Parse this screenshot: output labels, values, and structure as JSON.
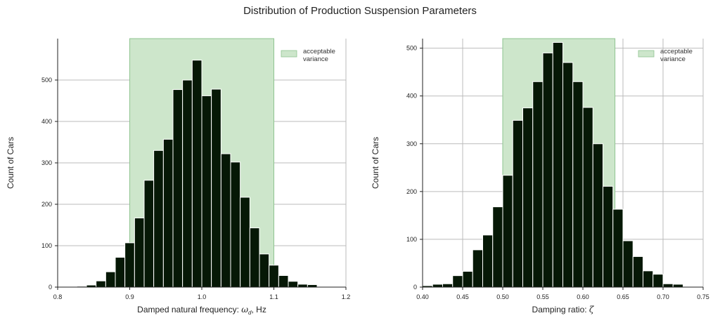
{
  "figure": {
    "title": "Distribution of Production Suspension Parameters"
  },
  "colors": {
    "bar": "#061806",
    "bar_edge": "#ffffff",
    "band": "#cde6cb",
    "band_edge": "#8fc490",
    "grid": "#bbbbbb"
  },
  "chart_data": [
    {
      "type": "histogram",
      "title": "",
      "xlabel": "Damped natural frequency: ",
      "xlabel_math": "ω",
      "xlabel_sub": "d",
      "xlabel_suffix": ", Hz",
      "ylabel": "Count of Cars",
      "xlim": [
        0.8,
        1.2
      ],
      "ylim": [
        0,
        600
      ],
      "xticks": [
        "0.8",
        "0.9",
        "1.0",
        "1.1",
        "1.2"
      ],
      "yticks": [
        "0",
        "100",
        "200",
        "300",
        "400",
        "500"
      ],
      "xtick_values": [
        0.8,
        0.9,
        1.0,
        1.1,
        1.2
      ],
      "ytick_values": [
        0,
        100,
        200,
        300,
        400,
        500
      ],
      "bin_edges": [
        0.8,
        0.8133,
        0.8267,
        0.84,
        0.8533,
        0.8667,
        0.88,
        0.8933,
        0.9067,
        0.92,
        0.9333,
        0.9467,
        0.96,
        0.9733,
        0.9867,
        1.0,
        1.0133,
        1.0267,
        1.04,
        1.0533,
        1.0667,
        1.08,
        1.0933,
        1.1067,
        1.12,
        1.1333,
        1.1467,
        1.16
      ],
      "counts": [
        1,
        1,
        2,
        5,
        15,
        37,
        72,
        107,
        167,
        258,
        330,
        357,
        477,
        500,
        548,
        462,
        478,
        322,
        302,
        217,
        143,
        80,
        53,
        28,
        14,
        7,
        6
      ],
      "shaded_region": {
        "start": 0.9,
        "end": 1.1,
        "label": [
          "acceptable",
          "variance"
        ]
      },
      "grid": true,
      "legend": "top-right"
    },
    {
      "type": "histogram",
      "title": "",
      "xlabel": "Damping ratio: ",
      "xlabel_math": "ζ",
      "xlabel_sub": "",
      "xlabel_suffix": "",
      "ylabel": "Count of Cars",
      "xlim": [
        0.4,
        0.75
      ],
      "ylim": [
        0,
        520
      ],
      "xticks": [
        "0.40",
        "0.45",
        "0.50",
        "0.55",
        "0.60",
        "0.65",
        "0.70",
        "0.75"
      ],
      "yticks": [
        "0",
        "100",
        "200",
        "300",
        "400",
        "500"
      ],
      "xtick_values": [
        0.4,
        0.45,
        0.5,
        0.55,
        0.6,
        0.65,
        0.7,
        0.75
      ],
      "ytick_values": [
        0,
        100,
        200,
        300,
        400,
        500
      ],
      "bin_edges": [
        0.4,
        0.4125,
        0.425,
        0.4375,
        0.45,
        0.4625,
        0.475,
        0.4875,
        0.5,
        0.5125,
        0.525,
        0.5375,
        0.55,
        0.5625,
        0.575,
        0.5875,
        0.6,
        0.6125,
        0.625,
        0.6375,
        0.65,
        0.6625,
        0.675,
        0.6875,
        0.7,
        0.7125,
        0.725,
        0.7375
      ],
      "counts": [
        3,
        6,
        7,
        24,
        33,
        78,
        109,
        168,
        234,
        349,
        375,
        430,
        490,
        512,
        470,
        430,
        376,
        300,
        211,
        163,
        97,
        64,
        34,
        27,
        7,
        6,
        1
      ],
      "shaded_region": {
        "start": 0.5,
        "end": 0.64,
        "label": [
          "acceptable",
          "variance"
        ]
      },
      "grid": true,
      "legend": "top-right"
    }
  ]
}
